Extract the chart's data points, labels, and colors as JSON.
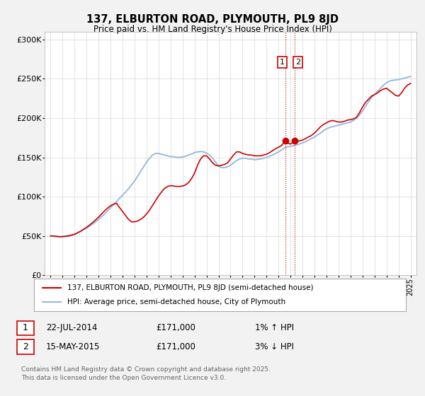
{
  "title1": "137, ELBURTON ROAD, PLYMOUTH, PL9 8JD",
  "title2": "Price paid vs. HM Land Registry's House Price Index (HPI)",
  "ylim": [
    0,
    310000
  ],
  "yticks": [
    0,
    50000,
    100000,
    150000,
    200000,
    250000,
    300000
  ],
  "ytick_labels": [
    "£0",
    "£50K",
    "£100K",
    "£150K",
    "£200K",
    "£250K",
    "£300K"
  ],
  "background_color": "#f2f2f2",
  "plot_bg_color": "#ffffff",
  "red_line_color": "#cc0000",
  "blue_line_color": "#99bbdd",
  "marker_color": "#cc0000",
  "vline_color": "#cc0000",
  "legend1": "137, ELBURTON ROAD, PLYMOUTH, PL9 8JD (semi-detached house)",
  "legend2": "HPI: Average price, semi-detached house, City of Plymouth",
  "annotation1_date": "22-JUL-2014",
  "annotation1_price": "£171,000",
  "annotation1_hpi": "1% ↑ HPI",
  "annotation2_date": "15-MAY-2015",
  "annotation2_price": "£171,000",
  "annotation2_hpi": "3% ↓ HPI",
  "footnote": "Contains HM Land Registry data © Crown copyright and database right 2025.\nThis data is licensed under the Open Government Licence v3.0.",
  "sale1_year": 2014.55,
  "sale2_year": 2015.37,
  "sale1_price": 171000,
  "sale2_price": 171000,
  "hpi_x": [
    1995.0,
    1995.25,
    1995.5,
    1995.75,
    1996.0,
    1996.25,
    1996.5,
    1996.75,
    1997.0,
    1997.25,
    1997.5,
    1997.75,
    1998.0,
    1998.25,
    1998.5,
    1998.75,
    1999.0,
    1999.25,
    1999.5,
    1999.75,
    2000.0,
    2000.25,
    2000.5,
    2000.75,
    2001.0,
    2001.25,
    2001.5,
    2001.75,
    2002.0,
    2002.25,
    2002.5,
    2002.75,
    2003.0,
    2003.25,
    2003.5,
    2003.75,
    2004.0,
    2004.25,
    2004.5,
    2004.75,
    2005.0,
    2005.25,
    2005.5,
    2005.75,
    2006.0,
    2006.25,
    2006.5,
    2006.75,
    2007.0,
    2007.25,
    2007.5,
    2007.75,
    2008.0,
    2008.25,
    2008.5,
    2008.75,
    2009.0,
    2009.25,
    2009.5,
    2009.75,
    2010.0,
    2010.25,
    2010.5,
    2010.75,
    2011.0,
    2011.25,
    2011.5,
    2011.75,
    2012.0,
    2012.25,
    2012.5,
    2012.75,
    2013.0,
    2013.25,
    2013.5,
    2013.75,
    2014.0,
    2014.25,
    2014.5,
    2014.75,
    2015.0,
    2015.25,
    2015.5,
    2015.75,
    2016.0,
    2016.25,
    2016.5,
    2016.75,
    2017.0,
    2017.25,
    2017.5,
    2017.75,
    2018.0,
    2018.25,
    2018.5,
    2018.75,
    2019.0,
    2019.25,
    2019.5,
    2019.75,
    2020.0,
    2020.25,
    2020.5,
    2020.75,
    2021.0,
    2021.25,
    2021.5,
    2021.75,
    2022.0,
    2022.25,
    2022.5,
    2022.75,
    2023.0,
    2023.25,
    2023.5,
    2023.75,
    2024.0,
    2024.25,
    2024.5,
    2024.75,
    2025.0
  ],
  "hpi_y": [
    50000,
    49500,
    49000,
    49000,
    49500,
    50000,
    50500,
    51500,
    52500,
    54000,
    56000,
    58000,
    60000,
    62500,
    65000,
    68000,
    71000,
    74500,
    78000,
    82000,
    86000,
    90000,
    94000,
    98000,
    102000,
    106000,
    110000,
    115000,
    120000,
    126000,
    132000,
    138000,
    144000,
    149000,
    153000,
    155000,
    155000,
    154000,
    153000,
    152000,
    151000,
    151000,
    150000,
    150000,
    150500,
    151500,
    153000,
    154500,
    156000,
    157000,
    157500,
    157000,
    155500,
    153000,
    149000,
    144000,
    139000,
    137000,
    137000,
    138000,
    140000,
    143000,
    146000,
    148000,
    149000,
    149000,
    148000,
    148000,
    147000,
    147500,
    148000,
    149000,
    150000,
    151500,
    153000,
    155000,
    157000,
    159500,
    162000,
    163500,
    164000,
    165000,
    166000,
    167000,
    168500,
    170000,
    172000,
    174000,
    176000,
    178500,
    181000,
    184000,
    186500,
    188000,
    189000,
    190000,
    191000,
    192000,
    193000,
    194000,
    195000,
    197000,
    200000,
    204000,
    209000,
    215000,
    221000,
    226000,
    230000,
    234000,
    238000,
    242000,
    245000,
    247000,
    248000,
    248500,
    249000,
    250000,
    251000,
    252000,
    253000
  ],
  "red_x": [
    1995.0,
    1995.25,
    1995.5,
    1995.75,
    1996.0,
    1996.25,
    1996.5,
    1996.75,
    1997.0,
    1997.25,
    1997.5,
    1997.75,
    1998.0,
    1998.25,
    1998.5,
    1998.75,
    1999.0,
    1999.25,
    1999.5,
    1999.75,
    2000.0,
    2000.25,
    2000.5,
    2000.75,
    2001.0,
    2001.25,
    2001.5,
    2001.75,
    2002.0,
    2002.25,
    2002.5,
    2002.75,
    2003.0,
    2003.25,
    2003.5,
    2003.75,
    2004.0,
    2004.25,
    2004.5,
    2004.75,
    2005.0,
    2005.25,
    2005.5,
    2005.75,
    2006.0,
    2006.25,
    2006.5,
    2006.75,
    2007.0,
    2007.25,
    2007.5,
    2007.75,
    2008.0,
    2008.25,
    2008.5,
    2008.75,
    2009.0,
    2009.25,
    2009.5,
    2009.75,
    2010.0,
    2010.25,
    2010.5,
    2010.75,
    2011.0,
    2011.25,
    2011.5,
    2011.75,
    2012.0,
    2012.25,
    2012.5,
    2012.75,
    2013.0,
    2013.25,
    2013.5,
    2013.75,
    2014.0,
    2014.25,
    2014.55,
    2014.75,
    2015.0,
    2015.37,
    2015.5,
    2015.75,
    2016.0,
    2016.25,
    2016.5,
    2016.75,
    2017.0,
    2017.25,
    2017.5,
    2017.75,
    2018.0,
    2018.25,
    2018.5,
    2018.75,
    2019.0,
    2019.25,
    2019.5,
    2019.75,
    2020.0,
    2020.25,
    2020.5,
    2020.75,
    2021.0,
    2021.25,
    2021.5,
    2021.75,
    2022.0,
    2022.25,
    2022.5,
    2022.75,
    2023.0,
    2023.25,
    2023.5,
    2023.75,
    2024.0,
    2024.25,
    2024.5,
    2024.75,
    2025.0
  ],
  "red_y": [
    50000,
    50000,
    49500,
    49000,
    49000,
    49500,
    50000,
    51000,
    52000,
    54000,
    56000,
    58500,
    61000,
    64000,
    67000,
    70500,
    74000,
    78000,
    82000,
    85500,
    88500,
    90500,
    91500,
    86000,
    81000,
    76000,
    71000,
    68000,
    68000,
    69000,
    71000,
    74000,
    78000,
    83000,
    89000,
    95000,
    101000,
    106000,
    110500,
    113000,
    114000,
    113500,
    113000,
    113000,
    113500,
    115000,
    118000,
    123000,
    130000,
    140000,
    148000,
    152000,
    152000,
    148000,
    143000,
    140000,
    139000,
    140000,
    141000,
    143000,
    148000,
    153000,
    157000,
    157000,
    155000,
    154000,
    153000,
    153000,
    152000,
    152000,
    152000,
    153000,
    154000,
    156000,
    158500,
    161000,
    163000,
    165000,
    171000,
    168000,
    167000,
    171000,
    170000,
    171000,
    172000,
    174000,
    176000,
    178000,
    181000,
    185000,
    189000,
    192000,
    194000,
    196000,
    197000,
    196000,
    195000,
    195000,
    196000,
    197500,
    198000,
    199000,
    201000,
    207000,
    214000,
    220000,
    224000,
    228000,
    230000,
    232000,
    235000,
    237000,
    238000,
    235000,
    232000,
    229000,
    228000,
    232000,
    238000,
    242000,
    244000
  ],
  "xtick_years": [
    1995,
    1996,
    1997,
    1998,
    1999,
    2000,
    2001,
    2002,
    2003,
    2004,
    2005,
    2006,
    2007,
    2008,
    2009,
    2010,
    2011,
    2012,
    2013,
    2014,
    2015,
    2016,
    2017,
    2018,
    2019,
    2020,
    2021,
    2022,
    2023,
    2024,
    2025
  ],
  "xlim": [
    1994.5,
    2025.5
  ]
}
